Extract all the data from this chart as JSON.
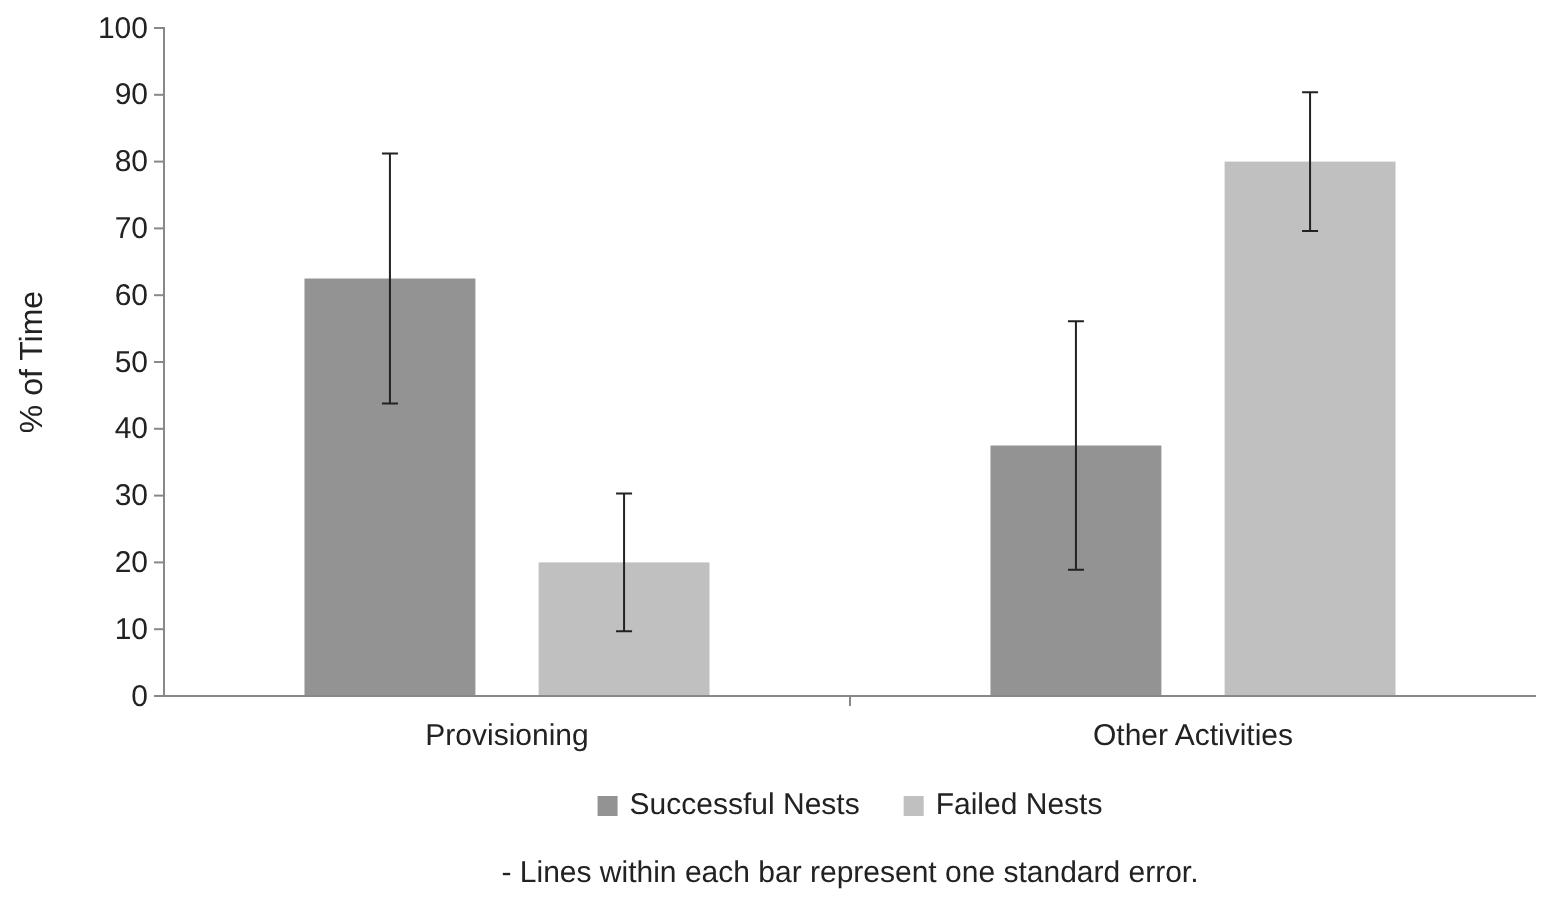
{
  "chart_data": {
    "type": "bar",
    "ylabel": "% of Time",
    "categories": [
      "Provisioning",
      "Other Activities"
    ],
    "series": [
      {
        "name": "Successful Nests",
        "color": "#939393",
        "values": [
          62.5,
          37.5
        ],
        "errors": [
          18.7,
          18.6
        ]
      },
      {
        "name": "Failed Nests",
        "color": "#c0c0c0",
        "values": [
          20,
          80
        ],
        "errors": [
          10.3,
          10.4
        ]
      }
    ],
    "ylim": [
      0,
      100
    ],
    "yticks": [
      0,
      10,
      20,
      30,
      40,
      50,
      60,
      70,
      80,
      90,
      100
    ],
    "grid": false,
    "legend": "bottom",
    "annotations": [
      "- Lines within each bar represent one standard error."
    ]
  }
}
